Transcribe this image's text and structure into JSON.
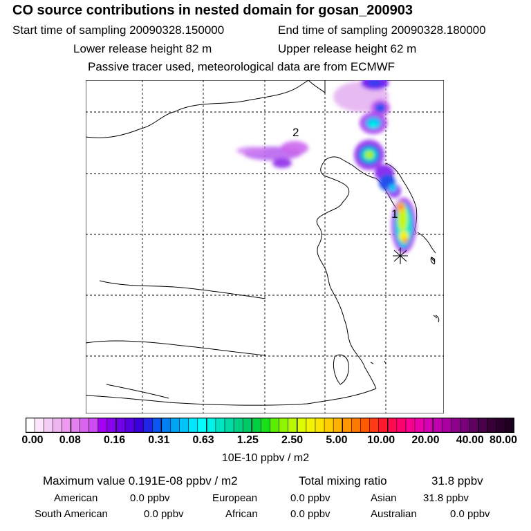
{
  "header": {
    "title": "CO  source contributions in nested domain for gosan_200903",
    "start_label": "Start time of sampling 20090328.150000",
    "end_label": "End time of sampling 20090328.180000",
    "lower_label": "Lower release height   82 m",
    "upper_label": "Upper release height   62 m",
    "note": "Passive tracer used, meteorological data are from ECMWF"
  },
  "map": {
    "labels": [
      "1",
      "2"
    ],
    "receptor_marker": "asterisk-icon"
  },
  "colorbar": {
    "ticks": [
      "0.00",
      "0.08",
      "0.16",
      "0.31",
      "0.63",
      "1.25",
      "2.50",
      "5.00",
      "10.00",
      "20.00",
      "40.00",
      "80.00"
    ],
    "colors": [
      "#ffffff",
      "#fbe6fb",
      "#f5ccf5",
      "#efb3ef",
      "#ef99ef",
      "#e37fef",
      "#d864f0",
      "#cd4cf2",
      "#a400f5",
      "#8a00ef",
      "#6f00e8",
      "#5500e2",
      "#3a00dc",
      "#2026e6",
      "#0a56ee",
      "#0080f2",
      "#00a4f6",
      "#00c4f8",
      "#00e6fa",
      "#00ffff",
      "#00f2e6",
      "#00e6c4",
      "#00daa4",
      "#00d084",
      "#00c864",
      "#00d040",
      "#18e018",
      "#5aee00",
      "#8ef400",
      "#b8f800",
      "#ddfa00",
      "#f4f400",
      "#ffe400",
      "#ffcc00",
      "#ffb000",
      "#ff9600",
      "#ff7800",
      "#ff5a00",
      "#ff3a14",
      "#ff1a30",
      "#ff0a4e",
      "#ff0070",
      "#f80090",
      "#ea00a8",
      "#d400b4",
      "#c000b0",
      "#a800a0",
      "#90008c",
      "#780078",
      "#600060",
      "#4a004a",
      "#360036",
      "#2a002a",
      "#1e001e"
    ],
    "unit": "10E-10 ppbv / m2"
  },
  "stats": {
    "max_label": "Maximum value  0.191E-08 ppbv / m2",
    "total_label": "Total mixing ratio",
    "total_value": "31.8 ppbv",
    "rows": [
      {
        "name": "American",
        "value": "0.0 ppbv"
      },
      {
        "name": "European",
        "value": "0.0 ppbv"
      },
      {
        "name": "Asian",
        "value": "31.8 ppbv"
      },
      {
        "name": "South American",
        "value": "0.0 ppbv"
      },
      {
        "name": "African",
        "value": "0.0 ppbv"
      },
      {
        "name": "Australian",
        "value": "0.0 ppbv"
      }
    ]
  }
}
